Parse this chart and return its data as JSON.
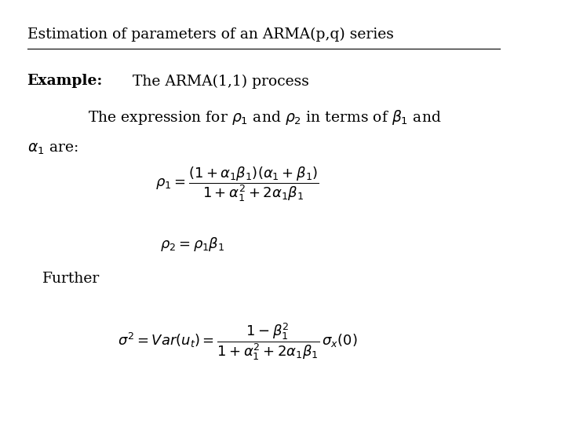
{
  "background_color": "#ffffff",
  "title_text": "Estimation of parameters of an ARMA(p,q) series",
  "title_fontsize": 13.5,
  "line1_bold": "Example:",
  "line1_normal": " The ARMA(1,1) process",
  "line1_fontsize": 13.5,
  "line2_text": "The expression for $\\rho_1$ and $\\rho_2$ in terms of $\\beta_1$ and",
  "line2_fontsize": 13.5,
  "line3_text": "$\\alpha_1$ are:",
  "line3_fontsize": 13.5,
  "eq1_text": "$\\rho_1 = \\dfrac{(1+\\alpha_1\\beta_1)(\\alpha_1+\\beta_1)}{1+\\alpha_1^2+2\\alpha_1\\beta_1}$",
  "eq1_fontsize": 13,
  "eq2_text": "$\\rho_2 = \\rho_1\\beta_1$",
  "eq2_fontsize": 13,
  "further_text": "Further",
  "further_fontsize": 13.5,
  "eq3_text": "$\\sigma^2 = Var\\left(u_t\\right)= \\dfrac{1-\\beta_1^2}{1+\\alpha_1^2+2\\alpha_1\\beta_1}\\,\\sigma_x(0)$",
  "eq3_fontsize": 13
}
